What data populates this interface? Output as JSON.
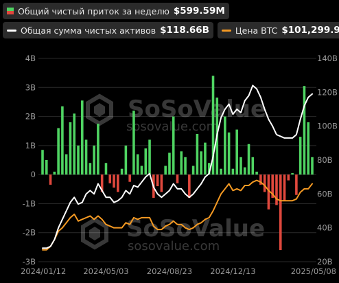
{
  "legend": {
    "flow": {
      "label": "Общий чистый приток за неделю",
      "value": "$599.59M"
    },
    "assets": {
      "label": "Общая сумма чистых активов",
      "value": "$118.66B"
    },
    "price": {
      "label": "Цена BTC",
      "value": "$101,299.99"
    }
  },
  "watermark": {
    "brand": "SoSoValue",
    "url": "sosovalue.com"
  },
  "colors": {
    "background": "#000000",
    "positive": "#4fd462",
    "negative": "#e0483d",
    "assets_line": "#ffffff",
    "price_line": "#f59a23",
    "gridline": "#2a2a2a",
    "axis_text": "#9a9a9a"
  },
  "chart_data": {
    "type": "bar",
    "x_tick_labels": [
      "2024/01/12",
      "2024/05/03",
      "2024/08/23",
      "2024/12/13",
      "2025/05/08"
    ],
    "x_tick_index": [
      0,
      16,
      32,
      48,
      68
    ],
    "y_left": {
      "ticks": [
        "4B",
        "3B",
        "2B",
        "1B",
        "0",
        "-1B",
        "-2B",
        "-3B"
      ],
      "range": [
        -3,
        4
      ],
      "unit": "B"
    },
    "y_right": {
      "ticks": [
        "140B",
        "120B",
        "100B",
        "80B",
        "60B",
        "40B",
        "20B"
      ],
      "range": [
        20,
        140
      ],
      "unit": "B"
    },
    "grid": true,
    "series": [
      {
        "name": "Общий чистый приток за неделю",
        "type": "bar",
        "axis": "left",
        "values": [
          0.85,
          0.5,
          -0.35,
          0.1,
          1.6,
          2.35,
          0.7,
          1.8,
          2.1,
          1.0,
          2.55,
          1.2,
          0.4,
          1.0,
          1.75,
          -0.6,
          0.4,
          -0.3,
          -0.45,
          -0.6,
          0.2,
          1.0,
          -0.25,
          2.2,
          0.7,
          0.3,
          0.9,
          1.2,
          -0.8,
          -0.4,
          -0.6,
          0.3,
          0.75,
          2.0,
          -0.3,
          0.8,
          0.6,
          -0.8,
          0.3,
          1.4,
          0.8,
          1.1,
          0.4,
          3.4,
          2.65,
          0.2,
          2.0,
          1.45,
          0.2,
          1.55,
          0.6,
          0.25,
          1.05,
          0.6,
          0.1,
          -0.35,
          -0.6,
          -1.2,
          -0.8,
          -1.05,
          -2.6,
          -0.9,
          -0.2,
          0.05,
          -0.7,
          1.3,
          3.05,
          1.8,
          0.6
        ],
        "color": "#4fd462",
        "negative_color": "#e0483d"
      },
      {
        "name": "Общая сумма чистых активов",
        "type": "line",
        "axis": "right",
        "values": [
          28,
          28,
          29,
          33,
          40,
          45,
          50,
          55,
          58,
          54,
          55,
          60,
          62,
          60,
          66,
          62,
          58,
          58,
          55,
          56,
          58,
          62,
          60,
          65,
          64,
          67,
          70,
          72,
          64,
          60,
          58,
          60,
          62,
          66,
          63,
          63,
          60,
          58,
          60,
          63,
          66,
          70,
          72,
          82,
          95,
          105,
          110,
          113,
          107,
          110,
          108,
          115,
          118,
          124,
          122,
          117,
          110,
          104,
          100,
          95,
          94,
          93,
          93,
          93,
          95,
          104,
          112,
          117,
          119
        ],
        "color": "#ffffff"
      },
      {
        "name": "Цена BTC",
        "type": "line",
        "axis": "right",
        "values": [
          27,
          27,
          29,
          33,
          38,
          40,
          43,
          46,
          48,
          44,
          45,
          46,
          47,
          45,
          47,
          45,
          42,
          41,
          40,
          40,
          40,
          43,
          42,
          46,
          45,
          46,
          46,
          46,
          41,
          39,
          39,
          41,
          42,
          44,
          42,
          42,
          40,
          39,
          40,
          42,
          43,
          45,
          46,
          50,
          55,
          60,
          63,
          66,
          62,
          63,
          62,
          65,
          65,
          67,
          68,
          67,
          65,
          62,
          60,
          57,
          56,
          56,
          56,
          56,
          57,
          61,
          63,
          63,
          66
        ],
        "color": "#f59a23"
      }
    ]
  }
}
